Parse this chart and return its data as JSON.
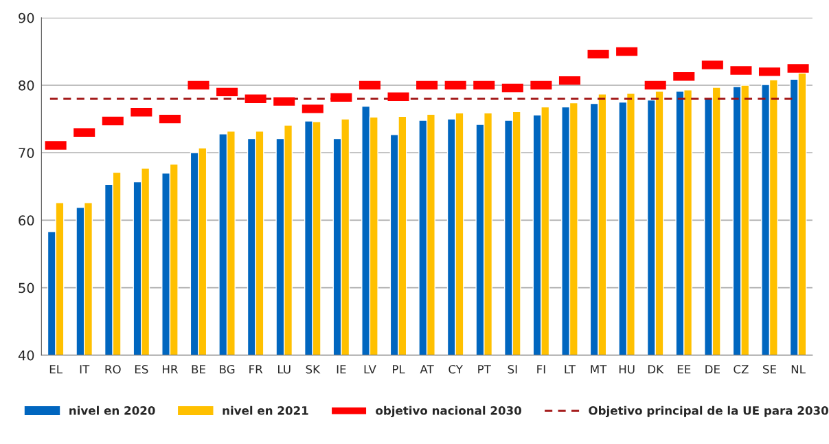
{
  "chart_data": {
    "type": "bar",
    "categories": [
      "EL",
      "IT",
      "RO",
      "ES",
      "HR",
      "BE",
      "BG",
      "FR",
      "LU",
      "SK",
      "IE",
      "LV",
      "PL",
      "AT",
      "CY",
      "PT",
      "SI",
      "FI",
      "LT",
      "MT",
      "HU",
      "DK",
      "EE",
      "DE",
      "CZ",
      "SE",
      "NL"
    ],
    "series": [
      {
        "name": "nivel en 2020",
        "color": "#0066bf",
        "values": [
          58.3,
          61.9,
          65.3,
          65.7,
          67.0,
          70.0,
          72.8,
          72.1,
          72.1,
          74.7,
          72.1,
          76.9,
          72.7,
          74.8,
          75.0,
          74.2,
          74.8,
          75.6,
          76.8,
          77.3,
          77.5,
          77.8,
          79.1,
          78.0,
          79.8,
          80.1,
          80.9
        ]
      },
      {
        "name": "nivel en 2021",
        "color": "#ffc000",
        "values": [
          62.6,
          62.6,
          67.1,
          67.7,
          68.3,
          70.7,
          73.2,
          73.2,
          74.1,
          74.6,
          75.0,
          75.3,
          75.4,
          75.7,
          75.9,
          75.9,
          76.1,
          76.8,
          77.4,
          78.7,
          78.8,
          79.1,
          79.3,
          79.7,
          80.0,
          80.8,
          81.8
        ]
      },
      {
        "name": "objetivo nacional 2030",
        "type": "scatter",
        "color": "#ff0000",
        "values": [
          71.1,
          73.0,
          74.7,
          76.0,
          75.0,
          80.0,
          79.0,
          78.0,
          77.6,
          76.5,
          78.2,
          80.0,
          78.3,
          80.0,
          80.0,
          80.0,
          79.6,
          80.0,
          80.7,
          84.6,
          85.0,
          80.0,
          81.3,
          83.0,
          82.2,
          82.0,
          82.5
        ]
      }
    ],
    "ref_lines": [
      {
        "axis": "y",
        "value": 78,
        "label": "Objetivo principal de la UE para 2030",
        "color": "#a01010",
        "line_style": "dashed"
      }
    ],
    "ylim": [
      40,
      90
    ],
    "yticks": [
      40,
      50,
      60,
      70,
      80,
      90
    ],
    "grid": "y",
    "legend": "bottom"
  }
}
